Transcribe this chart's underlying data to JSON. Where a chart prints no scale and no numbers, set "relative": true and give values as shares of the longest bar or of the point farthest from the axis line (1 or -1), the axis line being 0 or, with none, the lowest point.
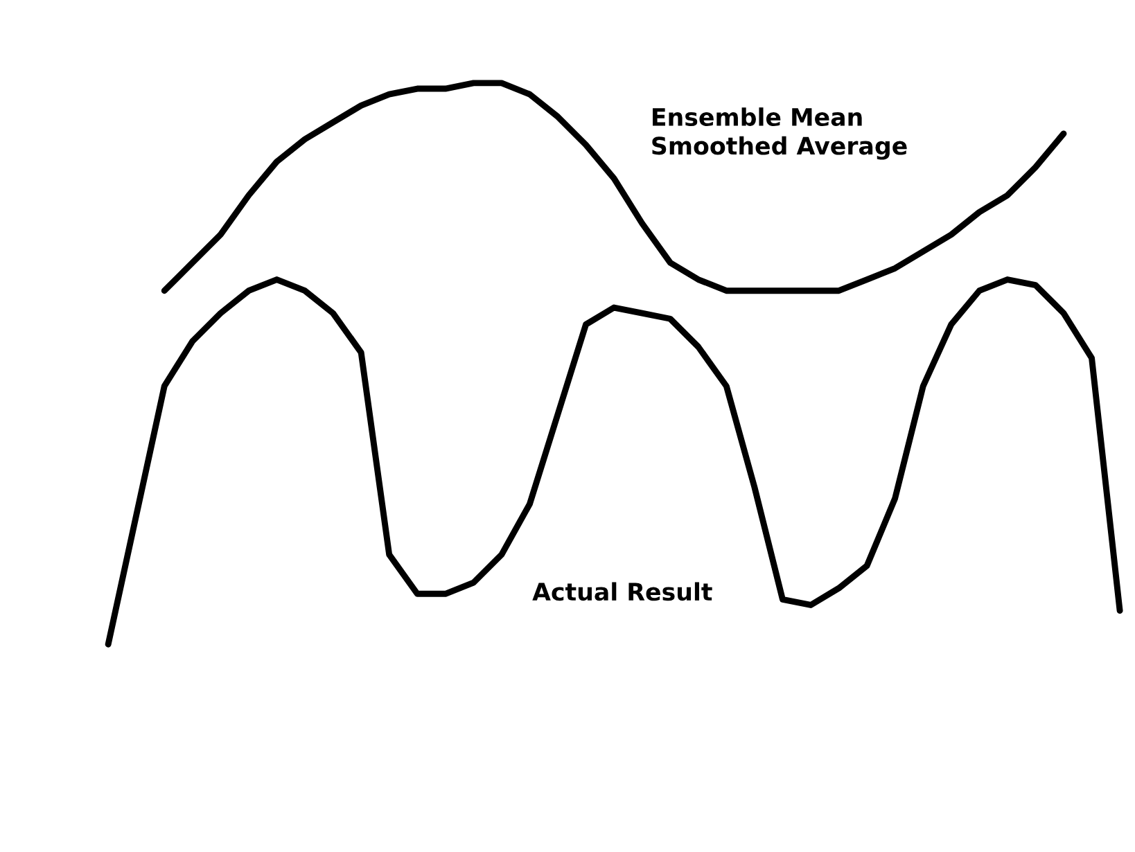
{
  "chart_data": {
    "type": "line",
    "relative": true,
    "legend": false,
    "grid": false,
    "marker": "none",
    "line_style": "solid",
    "categories": [
      null,
      null,
      null,
      null,
      null,
      null,
      null,
      null,
      null,
      null,
      null,
      null,
      null,
      null,
      null,
      null,
      null,
      null,
      null,
      null,
      null,
      null,
      null,
      null,
      null,
      null,
      null,
      null,
      null,
      null,
      null,
      null,
      null,
      null,
      null,
      null,
      null
    ],
    "series": [
      {
        "name": "Ensemble Mean\nSmoothed Average",
        "color": "#000000",
        "values": [
          null,
          null,
          0.63,
          0.68,
          0.73,
          0.8,
          0.86,
          0.9,
          0.93,
          0.96,
          0.98,
          0.99,
          0.99,
          1,
          1,
          0.98,
          0.94,
          0.89,
          0.83,
          0.75,
          0.68,
          0.65,
          0.63,
          0.63,
          0.63,
          0.63,
          0.63,
          0.65,
          0.67,
          0.7,
          0.73,
          0.77,
          0.8,
          0.85,
          0.91,
          null,
          null
        ]
      },
      {
        "name": "Actual Result",
        "color": "#000000",
        "values": [
          0,
          0.23,
          0.46,
          0.54,
          0.59,
          0.63,
          0.65,
          0.63,
          0.59,
          0.52,
          0.16,
          0.09,
          0.09,
          0.11,
          0.16,
          0.25,
          0.41,
          0.57,
          0.6,
          0.59,
          0.58,
          0.53,
          0.46,
          0.28,
          0.08,
          0.07,
          0.1,
          0.14,
          0.26,
          0.46,
          0.57,
          0.63,
          0.65,
          0.64,
          0.59,
          0.51,
          0.06
        ]
      }
    ]
  }
}
